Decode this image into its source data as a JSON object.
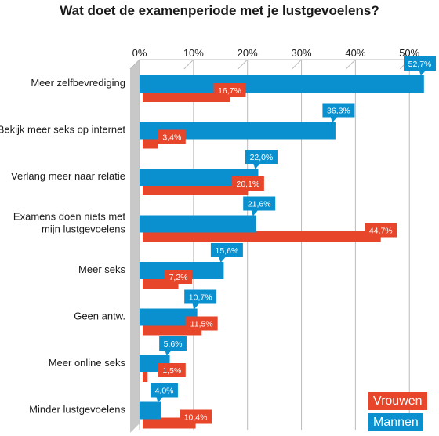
{
  "chart_data": {
    "type": "bar",
    "title": "Wat doet de examenperiode met je lustgevoelens?",
    "categories": [
      [
        "Meer zelfbevrediging"
      ],
      [
        "Bekijk meer seks op internet"
      ],
      [
        "Verlang meer naar relatie"
      ],
      [
        "Examens doen niets met",
        "mijn lustgevoelens"
      ],
      [
        "Meer seks"
      ],
      [
        "Geen antw."
      ],
      [
        "Meer online seks"
      ],
      [
        "Minder lustgevoelens"
      ]
    ],
    "series": [
      {
        "name": "Mannen",
        "color": "#0a8fcf",
        "values": [
          52.7,
          36.3,
          22.0,
          21.6,
          15.6,
          10.7,
          5.6,
          4.0
        ],
        "labels": [
          "52,7%",
          "36,3%",
          "22,0%",
          "21,6%",
          "15,6%",
          "10,7%",
          "5,6%",
          "4,0%"
        ]
      },
      {
        "name": "Vrouwen",
        "color": "#e8462a",
        "values": [
          16.7,
          3.4,
          20.1,
          44.7,
          7.2,
          11.5,
          1.5,
          10.4
        ],
        "labels": [
          "16,7%",
          "3,4%",
          "20,1%",
          "44,7%",
          "7,2%",
          "11,5%",
          "1,5%",
          "10,4%"
        ]
      }
    ],
    "xlim": [
      0,
      52
    ],
    "xticks": [
      "0%",
      "10%",
      "20%",
      "30%",
      "40%",
      "50%"
    ],
    "legend_position": "bottom-right",
    "legend": [
      "Vrouwen",
      "Mannen"
    ],
    "grid": true
  }
}
